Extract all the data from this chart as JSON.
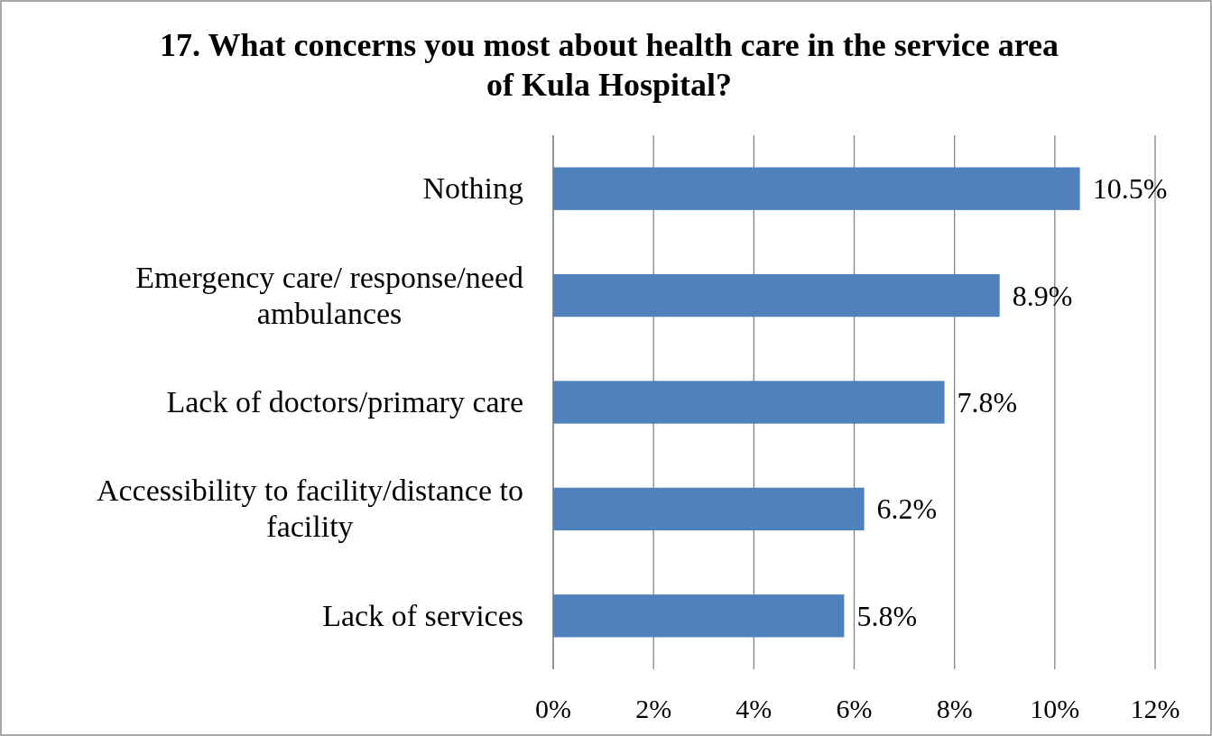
{
  "chart_data": {
    "type": "bar",
    "orientation": "horizontal",
    "title": "17. What concerns you most about health care in the service area of Kula Hospital?",
    "categories": [
      "Nothing",
      "Emergency care/ response/need ambulances",
      "Lack of doctors/primary care",
      "Accessibility to facility/distance to facility",
      "Lack of services"
    ],
    "values": [
      10.5,
      8.9,
      7.8,
      6.2,
      5.8
    ],
    "value_labels": [
      "10.5%",
      "8.9%",
      "7.8%",
      "6.2%",
      "5.8%"
    ],
    "color": "#4f81bd",
    "xlim": [
      0,
      12
    ],
    "xticks": [
      {
        "value": 0,
        "label": "0%"
      },
      {
        "value": 2,
        "label": "2%"
      },
      {
        "value": 4,
        "label": "4%"
      },
      {
        "value": 6,
        "label": "6%"
      },
      {
        "value": 8,
        "label": "8%"
      },
      {
        "value": 10,
        "label": "10%"
      },
      {
        "value": 12,
        "label": "12%"
      }
    ],
    "grid": "x"
  }
}
